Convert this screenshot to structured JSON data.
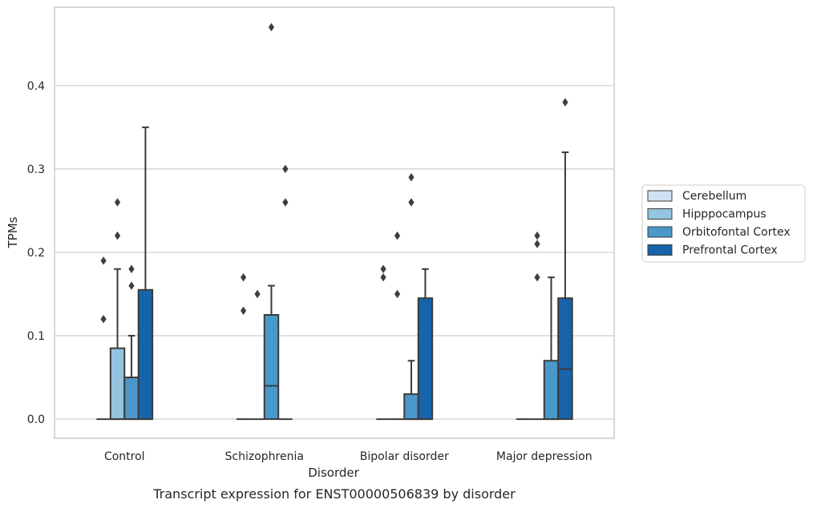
{
  "chart_data": {
    "type": "box",
    "title": "",
    "caption": "Transcript expression for ENST00000506839 by disorder",
    "xlabel": "Disorder",
    "ylabel": "TPMs",
    "ylim": [
      -0.023,
      0.494
    ],
    "yticks": [
      0.0,
      0.1,
      0.2,
      0.3,
      0.4
    ],
    "ytick_labels": [
      "0.0",
      "0.1",
      "0.2",
      "0.3",
      "0.4"
    ],
    "grid": "horizontal",
    "legend_position": "right",
    "categories": [
      "Control",
      "Schizophrenia",
      "Bipolar disorder",
      "Major depression"
    ],
    "series": [
      {
        "name": "Cerebellum",
        "color": "#d0e1f2",
        "boxes": [
          {
            "q1": 0,
            "median": 0,
            "q3": 0,
            "whisker_low": 0,
            "whisker_high": 0,
            "outliers": []
          },
          {
            "q1": 0,
            "median": 0,
            "q3": 0,
            "whisker_low": 0,
            "whisker_high": 0,
            "outliers": [
              0.13,
              0.17
            ]
          },
          {
            "q1": 0,
            "median": 0,
            "q3": 0,
            "whisker_low": 0,
            "whisker_high": 0,
            "outliers": [
              0.17,
              0.18
            ]
          },
          {
            "q1": 0,
            "median": 0,
            "q3": 0,
            "whisker_low": 0,
            "whisker_high": 0,
            "outliers": []
          }
        ]
      },
      {
        "name": "Hipppocampus",
        "color": "#94c4df",
        "boxes": [
          {
            "q1": 0,
            "median": 0,
            "q3": 0.085,
            "whisker_low": 0,
            "whisker_high": 0.18,
            "outliers": [
              0.22,
              0.26
            ]
          },
          {
            "q1": 0,
            "median": 0,
            "q3": 0,
            "whisker_low": 0,
            "whisker_high": 0,
            "outliers": [
              0.15
            ]
          },
          {
            "q1": 0,
            "median": 0,
            "q3": 0,
            "whisker_low": 0,
            "whisker_high": 0,
            "outliers": [
              0.15,
              0.22
            ]
          },
          {
            "q1": 0,
            "median": 0,
            "q3": 0,
            "whisker_low": 0,
            "whisker_high": 0,
            "outliers": [
              0.17,
              0.21,
              0.22
            ]
          }
        ]
      },
      {
        "name": "Orbitofontal Cortex",
        "color": "#4a98c9",
        "boxes": [
          {
            "q1": 0,
            "median": 0,
            "q3": 0.05,
            "whisker_low": 0,
            "whisker_high": 0.1,
            "outliers": [
              0.16,
              0.18
            ]
          },
          {
            "q1": 0,
            "median": 0.04,
            "q3": 0.125,
            "whisker_low": 0,
            "whisker_high": 0.16,
            "outliers": [
              0.47
            ]
          },
          {
            "q1": 0,
            "median": 0,
            "q3": 0.03,
            "whisker_low": 0,
            "whisker_high": 0.07,
            "outliers": [
              0.26,
              0.29
            ]
          },
          {
            "q1": 0,
            "median": 0,
            "q3": 0.07,
            "whisker_low": 0,
            "whisker_high": 0.17,
            "outliers": []
          }
        ]
      },
      {
        "name": "Prefrontal Cortex",
        "color": "#1764ab",
        "boxes": [
          {
            "q1": 0,
            "median": 0,
            "q3": 0.155,
            "whisker_low": 0,
            "whisker_high": 0.35,
            "outliers": []
          },
          {
            "q1": 0,
            "median": 0,
            "q3": 0,
            "whisker_low": 0,
            "whisker_high": 0,
            "outliers": [
              0.26,
              0.3
            ]
          },
          {
            "q1": 0,
            "median": 0,
            "q3": 0.145,
            "whisker_low": 0,
            "whisker_high": 0.18,
            "outliers": []
          },
          {
            "q1": 0,
            "median": 0.06,
            "q3": 0.145,
            "whisker_low": 0,
            "whisker_high": 0.32,
            "outliers": [
              0.38
            ]
          }
        ]
      }
    ],
    "single_outliers": [
      {
        "category": 0,
        "series": 0,
        "value": 0.12
      },
      {
        "category": 0,
        "series": 0,
        "value": 0.19
      }
    ],
    "colors": {
      "grid": "#cccccc",
      "frame": "#cccccc",
      "stroke": "#3b3b3b",
      "text": "#262626"
    }
  }
}
